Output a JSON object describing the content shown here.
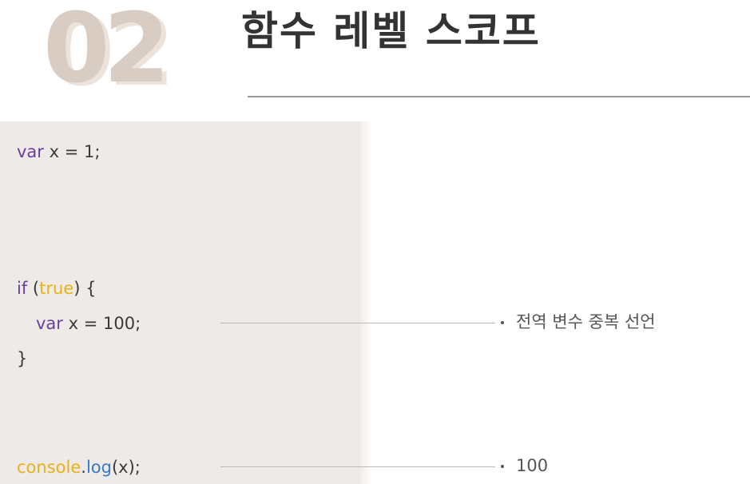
{
  "header": {
    "slide_number": "02",
    "title": "함수 레벨 스코프"
  },
  "code": {
    "line1": {
      "keyword": "var",
      "rest": " x = 1;"
    },
    "line2": {
      "keyword": "if",
      "open": " (",
      "bool": "true",
      "close": ") {"
    },
    "line3": {
      "keyword": "var",
      "rest": " x = 100;"
    },
    "line4": {
      "text": "}"
    },
    "line5": {
      "object": "console",
      "dot": ".",
      "method": "log",
      "rest": "(x);"
    }
  },
  "annotations": {
    "redeclare": "전역 변수 중복 선언",
    "output": "100"
  },
  "colors": {
    "keyword": "#6b3fa0",
    "boolean": "#e8b21a",
    "object": "#e8b21a",
    "method": "#3a78c9",
    "panel": "#eeeae7",
    "number_watermark": "#d9cdc3"
  }
}
